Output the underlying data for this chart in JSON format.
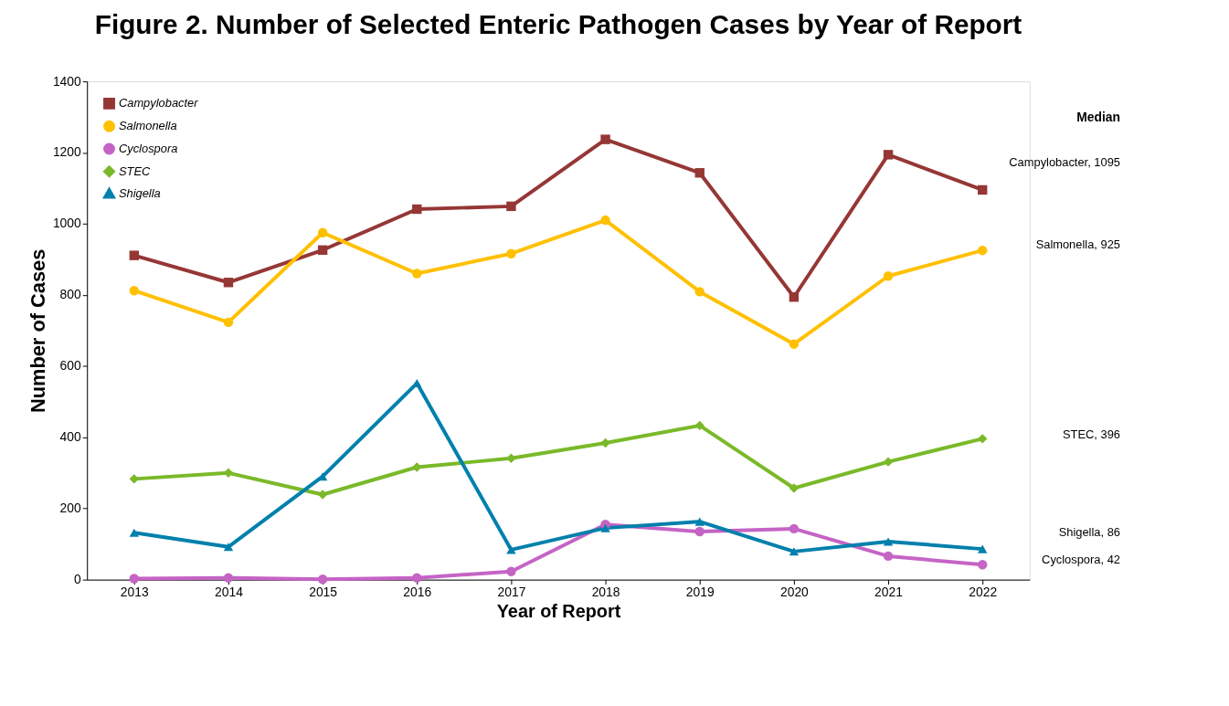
{
  "chart_data": {
    "type": "line",
    "title": "Figure 2. Number of Selected Enteric Pathogen Cases by Year of Report",
    "xlabel": "Year of Report",
    "ylabel": "Number of Cases",
    "categories": [
      "2013",
      "2014",
      "2015",
      "2016",
      "2017",
      "2018",
      "2019",
      "2020",
      "2021",
      "2022"
    ],
    "series": [
      {
        "name": "Campylobacter",
        "color": "#953735",
        "marker": "square",
        "values": [
          911,
          835,
          926,
          1041,
          1049,
          1237,
          1143,
          794,
          1194,
          1095
        ]
      },
      {
        "name": "Salmonella",
        "color": "#ffc000",
        "marker": "circle",
        "values": [
          812,
          723,
          975,
          860,
          916,
          1010,
          809,
          662,
          853,
          925
        ]
      },
      {
        "name": "Cyclospora",
        "color": "#c564c5",
        "marker": "circle",
        "values": [
          3,
          5,
          1,
          5,
          23,
          155,
          135,
          143,
          66,
          42
        ]
      },
      {
        "name": "STEC",
        "color": "#7ab929",
        "marker": "diamond",
        "values": [
          283,
          300,
          239,
          316,
          341,
          384,
          433,
          257,
          331,
          396
        ]
      },
      {
        "name": "Shigella",
        "color": "#0080ac",
        "marker": "triangle",
        "values": [
          132,
          92,
          290,
          552,
          84,
          145,
          163,
          79,
          107,
          86
        ]
      }
    ],
    "ylim": [
      0,
      1400
    ],
    "yticks": [
      0,
      200,
      400,
      600,
      800,
      1000,
      1200,
      1400
    ],
    "grid": false,
    "legend": "top left",
    "line_style": "solid",
    "annotations": [
      "Median",
      "Campylobacter, 1095",
      "Salmonella, 925",
      "STEC, 396",
      "Shigella, 86",
      "Cyclospora, 42"
    ]
  }
}
